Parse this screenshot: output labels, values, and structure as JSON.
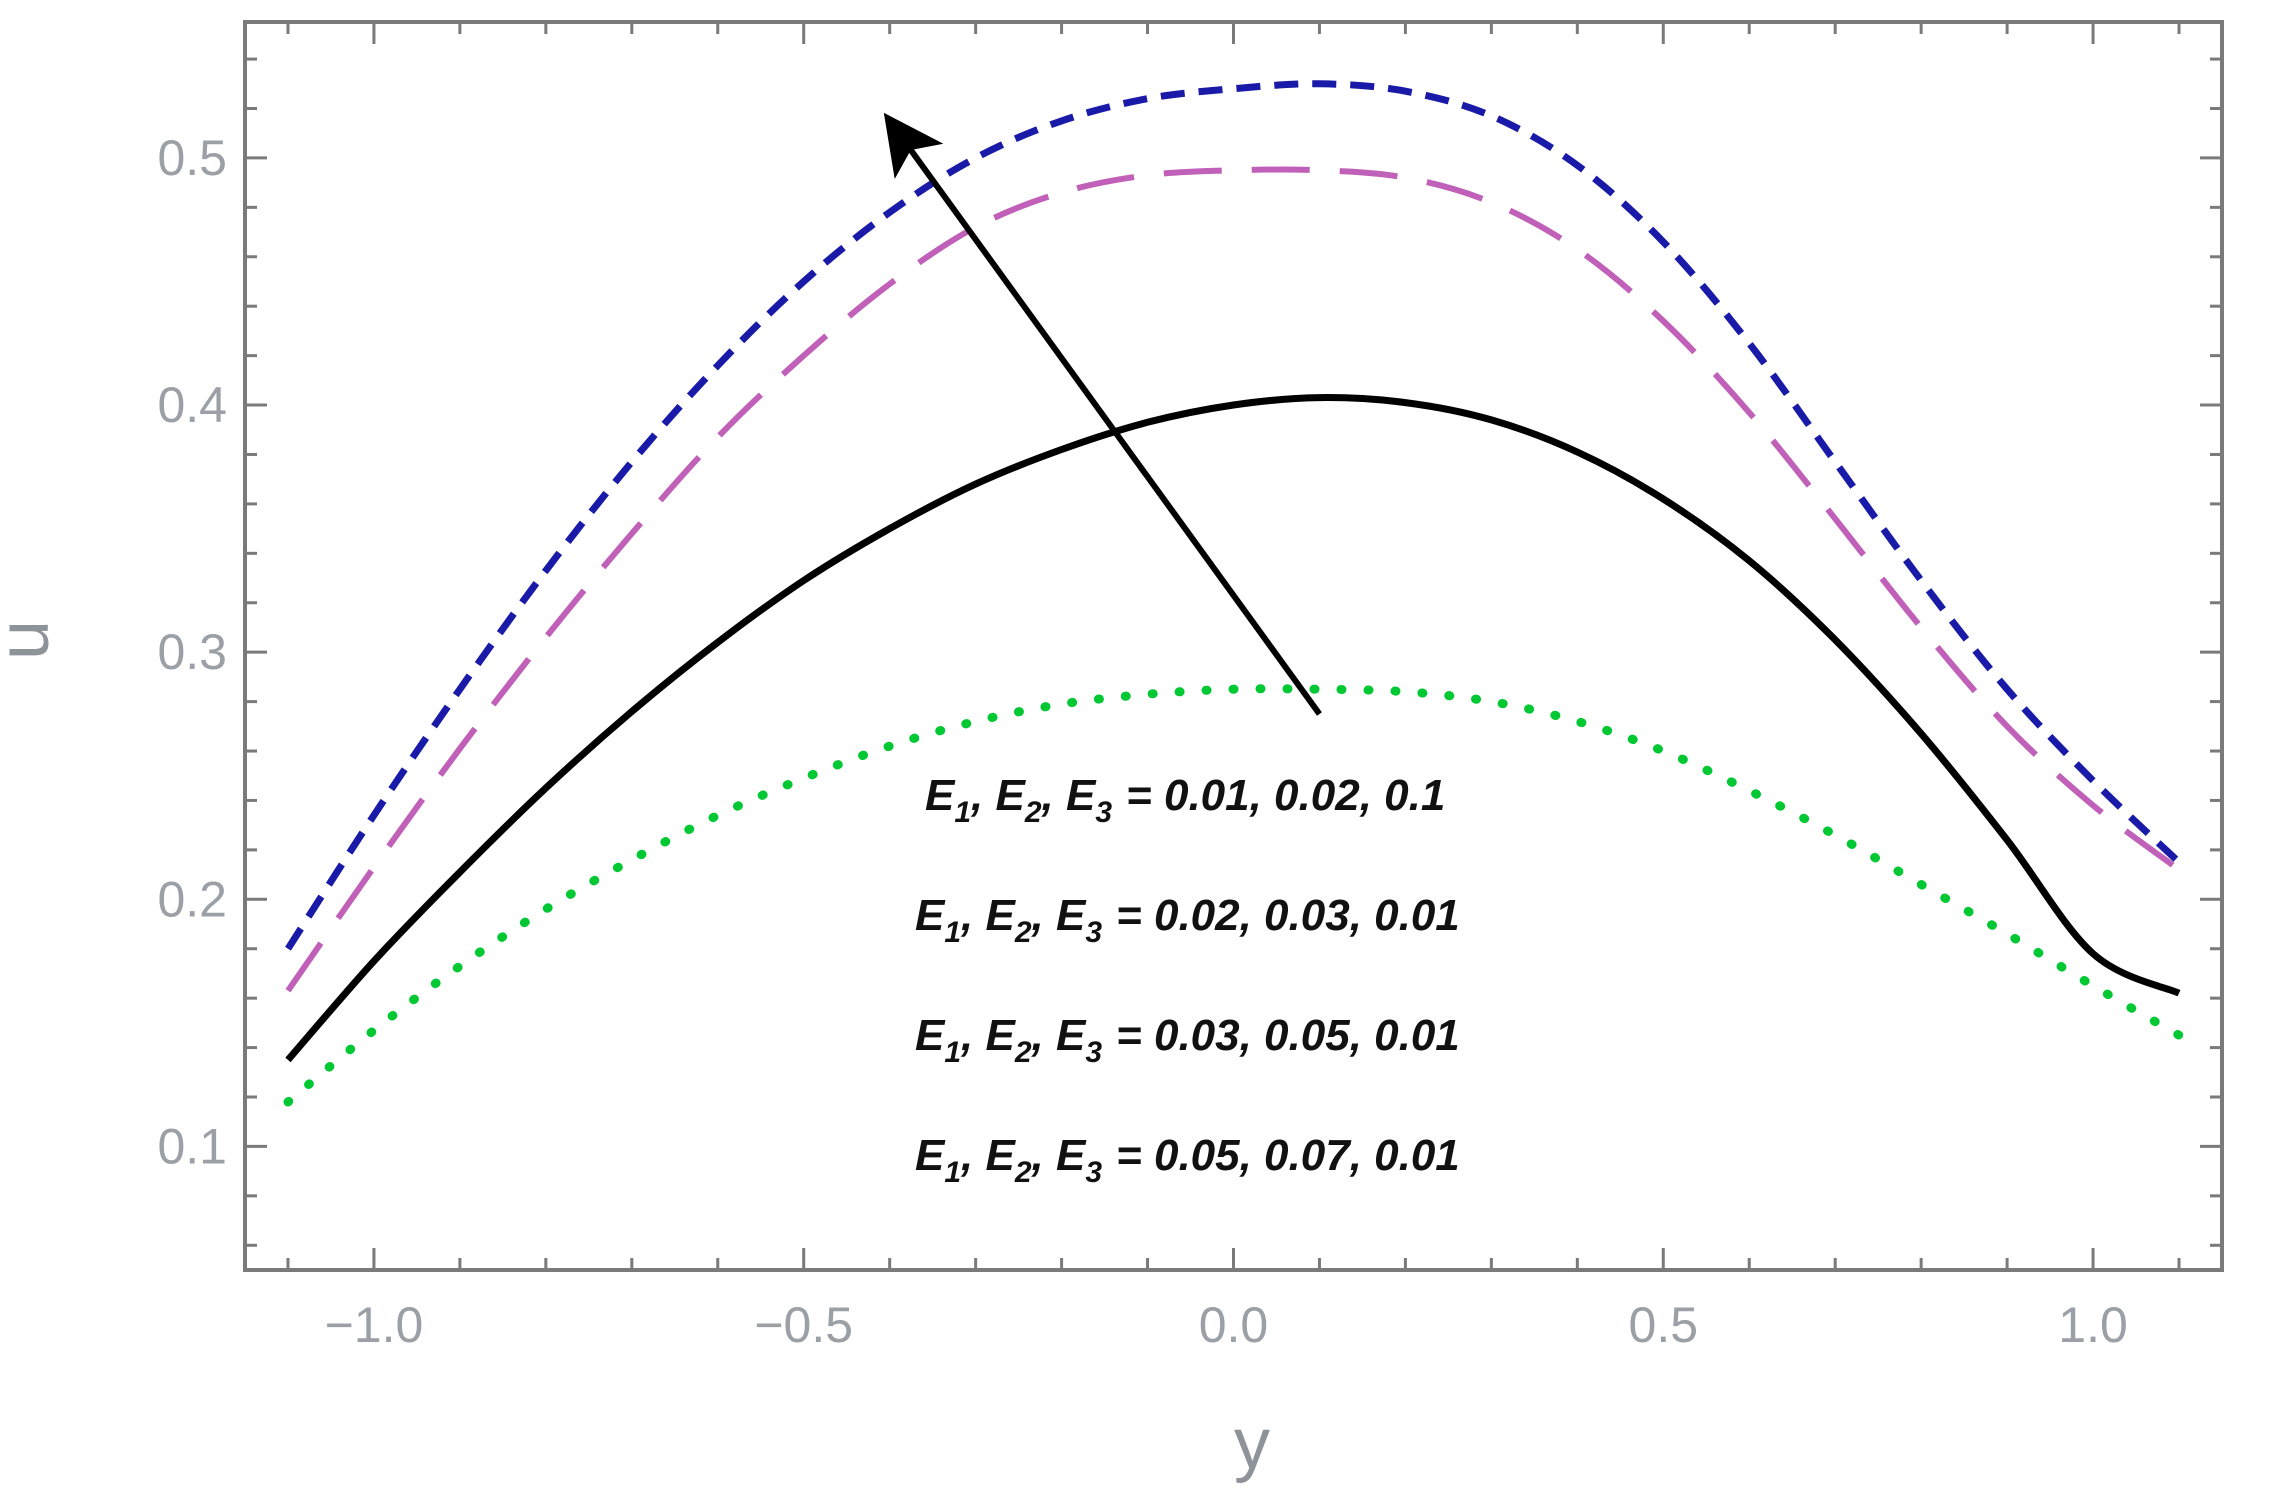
{
  "chart_data": {
    "type": "line",
    "title": "",
    "xlabel": "y",
    "ylabel": "u",
    "xlim": [
      -1.15,
      1.15
    ],
    "ylim": [
      0.05,
      0.555
    ],
    "xticks": [
      -1.0,
      -0.5,
      0.0,
      0.5,
      1.0
    ],
    "xtick_labels": [
      "−1.0",
      "−0.5",
      "0.0",
      "0.5",
      "1.0"
    ],
    "yticks": [
      0.1,
      0.2,
      0.3,
      0.4,
      0.5
    ],
    "ytick_labels": [
      "0.1",
      "0.2",
      "0.3",
      "0.4",
      "0.5"
    ],
    "grid": false,
    "legend_position": "bottom-center",
    "x": [
      -1.1,
      -1.0,
      -0.9,
      -0.8,
      -0.7,
      -0.6,
      -0.5,
      -0.4,
      -0.3,
      -0.2,
      -0.1,
      0.0,
      0.1,
      0.2,
      0.3,
      0.4,
      0.5,
      0.6,
      0.7,
      0.8,
      0.9,
      1.0,
      1.1
    ],
    "series": [
      {
        "name": "E1, E2, E3 = 0.01, 0.02, 0.1",
        "color": "#00c832",
        "style": "dotted",
        "values": [
          0.118,
          0.147,
          0.173,
          0.196,
          0.216,
          0.234,
          0.249,
          0.262,
          0.272,
          0.279,
          0.283,
          0.285,
          0.285,
          0.284,
          0.28,
          0.272,
          0.26,
          0.244,
          0.226,
          0.206,
          0.186,
          0.165,
          0.145
        ]
      },
      {
        "name": "E1, E2, E3 = 0.02, 0.03, 0.01",
        "color": "#000000",
        "style": "solid",
        "values": [
          0.135,
          0.175,
          0.211,
          0.245,
          0.276,
          0.304,
          0.329,
          0.35,
          0.368,
          0.382,
          0.393,
          0.4,
          0.403,
          0.401,
          0.394,
          0.381,
          0.362,
          0.337,
          0.305,
          0.267,
          0.224,
          0.178,
          0.162
        ]
      },
      {
        "name": "E1, E2, E3 = 0.03, 0.05, 0.01",
        "color": "#c060b8",
        "style": "long-dashed",
        "values": [
          0.163,
          0.213,
          0.261,
          0.306,
          0.348,
          0.387,
          0.42,
          0.449,
          0.472,
          0.486,
          0.493,
          0.495,
          0.495,
          0.492,
          0.482,
          0.463,
          0.434,
          0.397,
          0.354,
          0.31,
          0.27,
          0.238,
          0.212
        ]
      },
      {
        "name": "E1, E2, E3 = 0.05, 0.07, 0.01",
        "color": "#1a1aa8",
        "style": "short-dashed",
        "values": [
          0.18,
          0.234,
          0.285,
          0.333,
          0.377,
          0.416,
          0.45,
          0.478,
          0.5,
          0.515,
          0.524,
          0.528,
          0.53,
          0.527,
          0.517,
          0.497,
          0.466,
          0.425,
          0.377,
          0.329,
          0.285,
          0.248,
          0.215
        ]
      }
    ],
    "annotation": {
      "type": "arrow",
      "from": [
        0.1,
        0.275
      ],
      "to": [
        -0.4,
        0.515
      ]
    }
  },
  "legend": {
    "entries": [
      {
        "vars": [
          "E",
          "E",
          "E"
        ],
        "subs": [
          "1",
          "2",
          "3"
        ],
        "values": "= 0.01, 0.02, 0.1"
      },
      {
        "vars": [
          "E",
          "E",
          "E"
        ],
        "subs": [
          "1",
          "2",
          "3"
        ],
        "values": "= 0.02, 0.03, 0.01"
      },
      {
        "vars": [
          "E",
          "E",
          "E"
        ],
        "subs": [
          "1",
          "2",
          "3"
        ],
        "values": "= 0.03, 0.05, 0.01"
      },
      {
        "vars": [
          "E",
          "E",
          "E"
        ],
        "subs": [
          "1",
          "2",
          "3"
        ],
        "values": "= 0.05, 0.07, 0.01"
      }
    ]
  },
  "colors": {
    "frame": "#7a7a7a",
    "tick_label": "#9aa0a6",
    "axis_title": "#8e9399",
    "arrow": "#000000"
  }
}
